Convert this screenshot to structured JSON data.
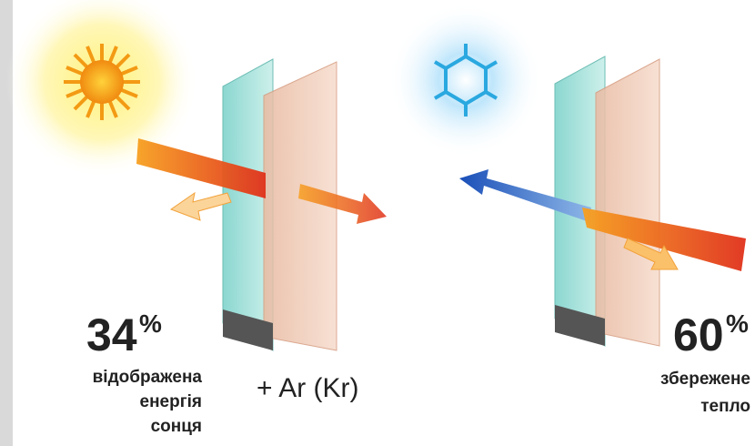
{
  "left": {
    "value": "34",
    "unit": "%",
    "caption_lines": [
      "відображена",
      "енергія",
      "сонця"
    ]
  },
  "gas": "+ Ar (Kr)",
  "right": {
    "value": "60",
    "unit": "%",
    "caption_lines": [
      "збережене",
      "тепло"
    ]
  }
}
